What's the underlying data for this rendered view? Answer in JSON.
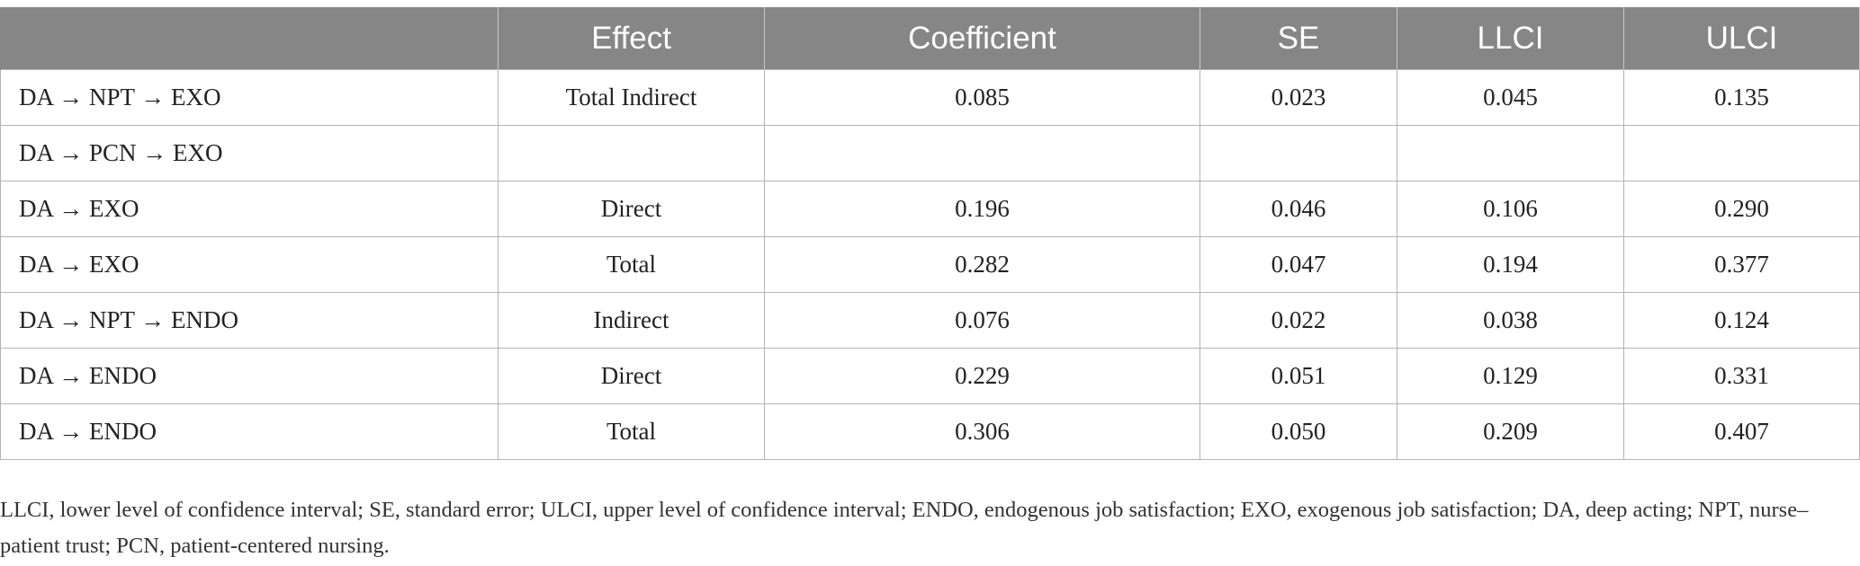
{
  "table": {
    "headers": [
      "",
      "Effect",
      "Coefficient",
      "SE",
      "LLCI",
      "ULCI"
    ],
    "rows": [
      [
        "DA → NPT → EXO",
        "Total Indirect",
        "0.085",
        "0.023",
        "0.045",
        "0.135"
      ],
      [
        "DA → PCN → EXO",
        "",
        "",
        "",
        "",
        ""
      ],
      [
        "DA → EXO",
        "Direct",
        "0.196",
        "0.046",
        "0.106",
        "0.290"
      ],
      [
        "DA → EXO",
        "Total",
        "0.282",
        "0.047",
        "0.194",
        "0.377"
      ],
      [
        "DA → NPT → ENDO",
        "Indirect",
        "0.076",
        "0.022",
        "0.038",
        "0.124"
      ],
      [
        "DA → ENDO",
        "Direct",
        "0.229",
        "0.051",
        "0.129",
        "0.331"
      ],
      [
        "DA → ENDO",
        "Total",
        "0.306",
        "0.050",
        "0.209",
        "0.407"
      ]
    ]
  },
  "footnote": "LLCI, lower level of confidence interval; SE, standard error; ULCI, upper level of confidence interval; ENDO, endogenous job satisfaction; EXO, exogenous job satisfaction; DA, deep acting; NPT, nurse–patient trust; PCN, patient-centered nursing.",
  "colors": {
    "header_bg": "#858685",
    "header_text": "#ffffff",
    "grid": "#b4b4b4"
  }
}
